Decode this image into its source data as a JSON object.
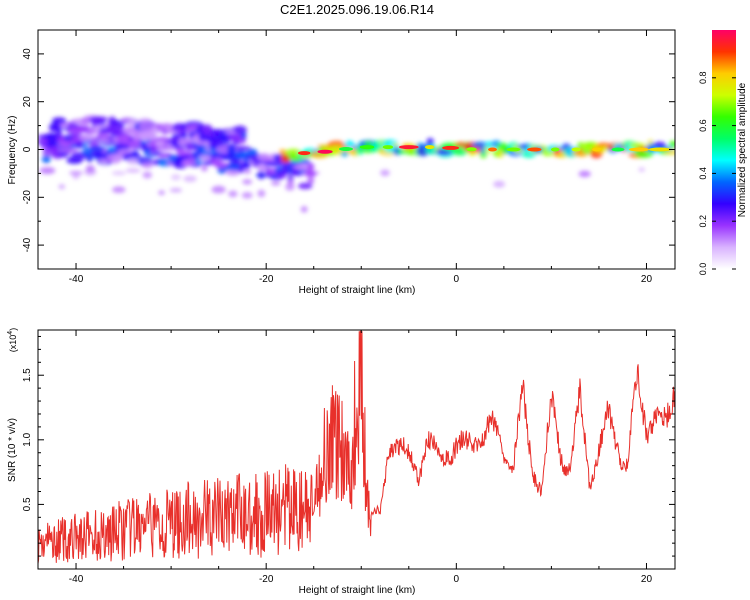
{
  "title": "C2E1.2025.096.19.06.R14",
  "chart_data": [
    {
      "type": "heatmap",
      "xlabel": "Height of straight line (km)",
      "ylabel": "Frequency (Hz)",
      "xlim": [
        -44,
        23
      ],
      "ylim": [
        -50,
        50
      ],
      "x_ticks": [
        -40,
        -20,
        0,
        20
      ],
      "y_ticks": [
        -40,
        -20,
        0,
        20,
        40
      ],
      "colorbar": {
        "label": "Normalized spectral amplitude",
        "range": [
          0.0,
          1.0
        ],
        "ticks": [
          0.0,
          0.2,
          0.4,
          0.6,
          0.8
        ],
        "tick_labels": [
          "0.0",
          "0.2",
          "0.4",
          "0.6",
          "0.8"
        ],
        "colors": [
          "#ffffff",
          "#d9b3ff",
          "#9933ff",
          "#3300ff",
          "#0066ff",
          "#00ffff",
          "#00ff66",
          "#33ff00",
          "#ccff00",
          "#ffcc00",
          "#ff3300",
          "#ff0066"
        ]
      },
      "ridges": [
        {
          "x": [
            -43,
            -38,
            -34,
            -30,
            -26,
            -22,
            -18,
            -15
          ],
          "freq": [
            1,
            0,
            0,
            -1,
            -3,
            -5,
            -8,
            -12
          ],
          "amplitude": 0.3
        },
        {
          "x": [
            -43,
            -38,
            -34,
            -30,
            -26,
            -22
          ],
          "freq": [
            8,
            8,
            7,
            6,
            5,
            3
          ],
          "amplitude": 0.25
        },
        {
          "x": [
            -18,
            -14,
            -10,
            -6,
            -2,
            2,
            6,
            10,
            14,
            18,
            23
          ],
          "freq": [
            -2,
            -1,
            1,
            1,
            1,
            0,
            0,
            0,
            0,
            0,
            0
          ],
          "amplitude": 0.75
        }
      ]
    },
    {
      "type": "line",
      "xlabel": "Height of straight line (km)",
      "ylabel": "SNR (10 * v/v)",
      "y_multiplier": "(x10",
      "y_multiplier_exp": "4",
      "xlim": [
        -44,
        23
      ],
      "ylim": [
        0,
        18500
      ],
      "x_ticks": [
        -40,
        -20,
        0,
        20
      ],
      "y_ticks": [
        5000,
        10000,
        15000
      ],
      "y_tick_labels": [
        "0.5",
        "1.0",
        "1.5"
      ],
      "series": [
        {
          "color": "#e8302b",
          "x": [
            -44,
            -42,
            -40,
            -38,
            -36,
            -34,
            -32,
            -30,
            -28,
            -26,
            -24,
            -22,
            -20,
            -18,
            -16,
            -15,
            -14,
            -13,
            -12,
            -11,
            -10.5,
            -10,
            -9.5,
            -9,
            -8,
            -7,
            -6,
            -5,
            -4,
            -3,
            -2,
            -1,
            0,
            1,
            2,
            3,
            4,
            5,
            6,
            7,
            8,
            9,
            10,
            11,
            12,
            13,
            14,
            15,
            16,
            17,
            18,
            19,
            20,
            21,
            22,
            23
          ],
          "y": [
            2000,
            2200,
            2400,
            2600,
            2900,
            3100,
            3300,
            3500,
            3800,
            4000,
            4200,
            4300,
            4400,
            4600,
            4500,
            4200,
            9500,
            10500,
            10000,
            8000,
            14000,
            18400,
            6000,
            4000,
            4000,
            10000,
            9500,
            8500,
            7500,
            10000,
            8500,
            9000,
            9500,
            9500,
            10000,
            10500,
            11000,
            9500,
            8000,
            13500,
            8000,
            6000,
            13000,
            9000,
            7500,
            13500,
            7000,
            9000,
            12000,
            9500,
            8000,
            15000,
            11000,
            12000,
            11000,
            14000
          ]
        }
      ]
    }
  ]
}
